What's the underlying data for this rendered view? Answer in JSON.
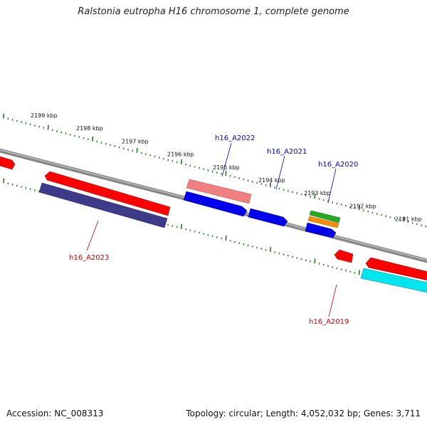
{
  "title": "Ralstonia eutropha H16 chromosome 1, complete genome",
  "footer": {
    "accession": "Accession: NC_008313",
    "info": "Topology: circular; Length: 4,052,032 bp; Genes: 3,711"
  },
  "ticks": [
    {
      "label": "2199 kbp"
    },
    {
      "label": "2198 kbp"
    },
    {
      "label": "2197 kbp"
    },
    {
      "label": "2196 kbp"
    },
    {
      "label": "2195 kbp"
    },
    {
      "label": "2194 kbp"
    },
    {
      "label": "2193 kbp"
    },
    {
      "label": "2192 kbp"
    },
    {
      "label": "2191 kbp"
    }
  ],
  "gene_labels": [
    {
      "text": "h16_A2022",
      "color": "#0000cc"
    },
    {
      "text": "h16_A2021",
      "color": "#0000cc"
    },
    {
      "text": "h16_A2020",
      "color": "#0000cc"
    },
    {
      "text": "h16_A2023",
      "color": "#cc0000"
    },
    {
      "text": "h16_A2019",
      "color": "#cc0000"
    }
  ],
  "colors": {
    "backbone": "#888888",
    "tick": "#227722",
    "cds_forward": "#ff0000",
    "cds_reverse": "#0000ee",
    "dark_feature": "#3d3a8a",
    "pink_feature": "#f08080",
    "cyan_feature": "#00e5ee",
    "green_feature": "#22aa22",
    "orange_feature": "#ff8c00"
  }
}
